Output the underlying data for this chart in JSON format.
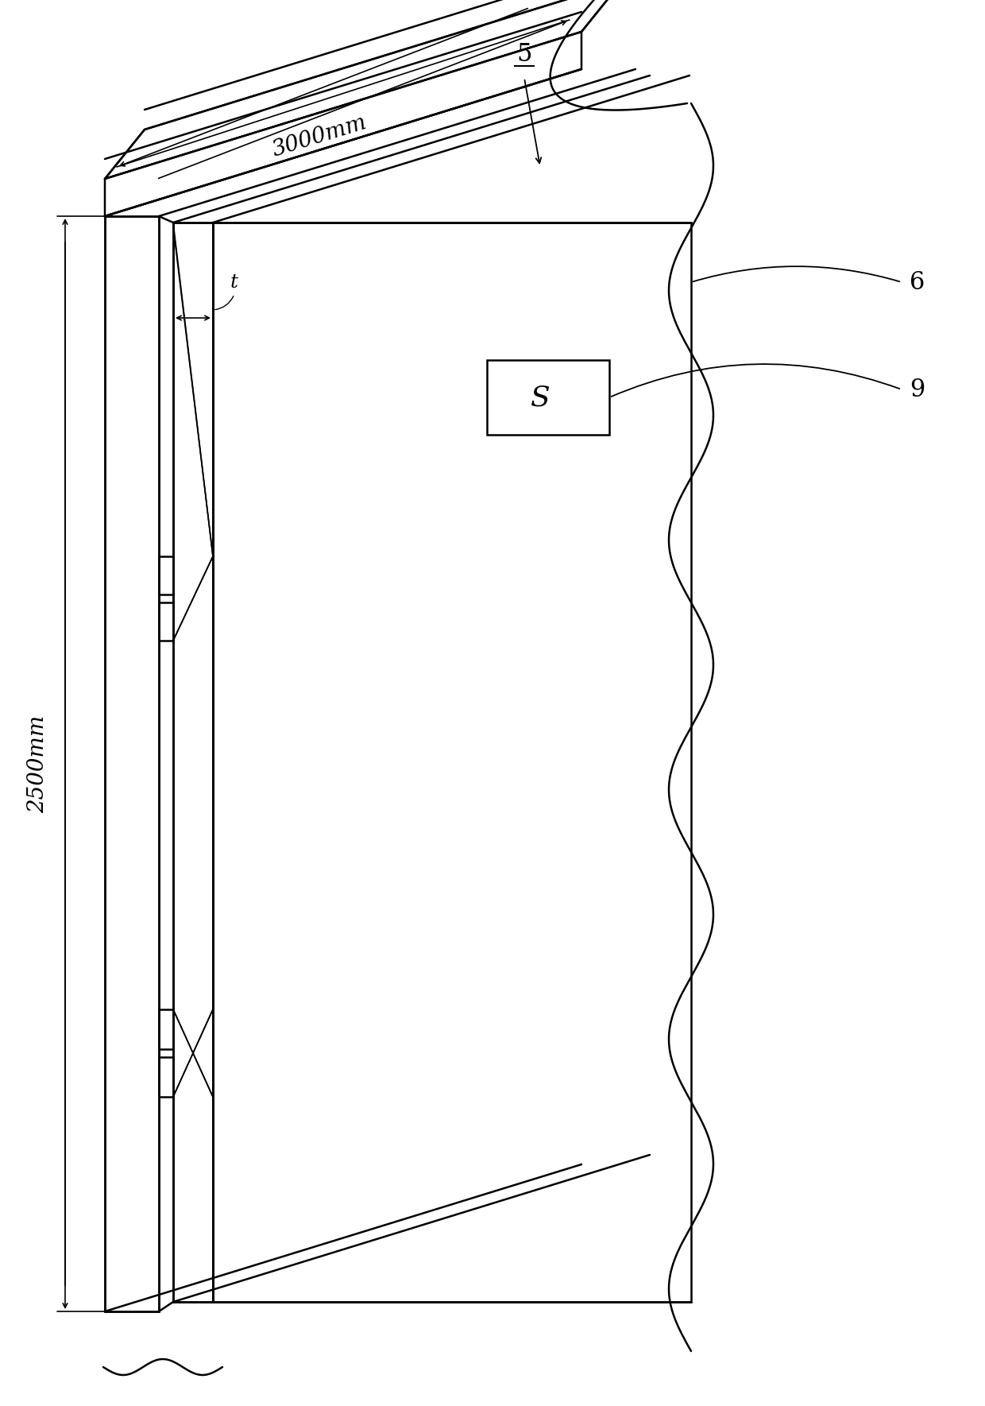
{
  "bg_color": "#ffffff",
  "line_color": "#000000",
  "lw_main": 1.8,
  "lw_thin": 1.2,
  "fig_width": 12.4,
  "fig_height": 17.69,
  "label_5": "5",
  "label_6": "6",
  "label_9": "9",
  "label_t": "t",
  "label_3000": "3000mm",
  "label_2500": "2500mm",
  "label_S": "S"
}
